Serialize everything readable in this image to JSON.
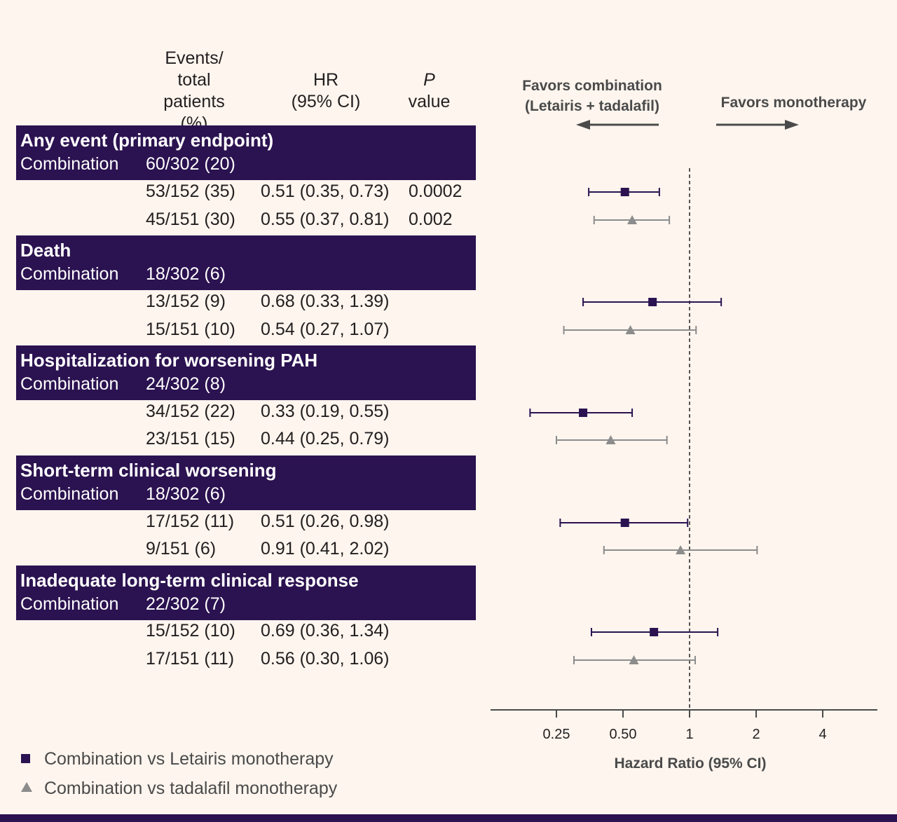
{
  "headers": {
    "events_line1": "Events/",
    "events_line2": "total",
    "events_line3": "patients (%)",
    "hr_line1": "HR",
    "hr_line2": "(95% CI)",
    "p_line1": "P",
    "p_line2": "value"
  },
  "favors": {
    "combination_line1": "Favors combination",
    "combination_line2": "(Letairis + tadalafil)",
    "monotherapy": "Favors monotherapy"
  },
  "groups": [
    {
      "title": "Any event (primary endpoint)",
      "combo_label": "Combination",
      "combo_value": "60/302 (20)",
      "rows": [
        {
          "events": "53/152 (35)",
          "hr": "0.51 (0.35, 0.73)",
          "p": "0.0002"
        },
        {
          "events": "45/151 (30)",
          "hr": "0.55 (0.37, 0.81)",
          "p": "0.002"
        }
      ]
    },
    {
      "title": "Death",
      "combo_label": "Combination",
      "combo_value": "18/302 (6)",
      "rows": [
        {
          "events": "13/152 (9)",
          "hr": "0.68 (0.33, 1.39)",
          "p": ""
        },
        {
          "events": "15/151 (10)",
          "hr": "0.54 (0.27, 1.07)",
          "p": ""
        }
      ]
    },
    {
      "title": "Hospitalization for worsening PAH",
      "combo_label": "Combination",
      "combo_value": "24/302 (8)",
      "rows": [
        {
          "events": "34/152 (22)",
          "hr": "0.33 (0.19, 0.55)",
          "p": ""
        },
        {
          "events": "23/151 (15)",
          "hr": "0.44 (0.25, 0.79)",
          "p": ""
        }
      ]
    },
    {
      "title": "Short-term clinical worsening",
      "combo_label": "Combination",
      "combo_value": "18/302 (6)",
      "rows": [
        {
          "events": "17/152 (11)",
          "hr": "0.51 (0.26, 0.98)",
          "p": ""
        },
        {
          "events": "9/151 (6)",
          "hr": "0.91 (0.41, 2.02)",
          "p": ""
        }
      ]
    },
    {
      "title": "Inadequate long-term clinical response",
      "combo_label": "Combination",
      "combo_value": "22/302 (7)",
      "rows": [
        {
          "events": "15/152 (10)",
          "hr": "0.69 (0.36, 1.34)",
          "p": ""
        },
        {
          "events": "17/151 (11)",
          "hr": "0.56 (0.30, 1.06)",
          "p": ""
        }
      ]
    }
  ],
  "legend": {
    "square": "Combination vs Letairis monotherapy",
    "triangle": "Combination vs tadalafil monotherapy"
  },
  "colors": {
    "primary": "#2b1250",
    "secondary": "#8c8c8c",
    "background": "#fdf5ee"
  },
  "chart_data": {
    "type": "forest",
    "xscale": "log2",
    "xlabel": "Hazard Ratio (95% CI)",
    "xticks": [
      0.25,
      0.5,
      1,
      2,
      4
    ],
    "xtick_labels": [
      "0.25",
      "0.50",
      "1",
      "2",
      "4"
    ],
    "reference_line": 1,
    "series": [
      {
        "name": "Combination vs Letairis monotherapy",
        "marker": "square",
        "points": [
          {
            "group": "Any event (primary endpoint)",
            "hr": 0.51,
            "lo": 0.35,
            "hi": 0.73
          },
          {
            "group": "Death",
            "hr": 0.68,
            "lo": 0.33,
            "hi": 1.39
          },
          {
            "group": "Hospitalization for worsening PAH",
            "hr": 0.33,
            "lo": 0.19,
            "hi": 0.55
          },
          {
            "group": "Short-term clinical worsening",
            "hr": 0.51,
            "lo": 0.26,
            "hi": 0.98
          },
          {
            "group": "Inadequate long-term clinical response",
            "hr": 0.69,
            "lo": 0.36,
            "hi": 1.34
          }
        ]
      },
      {
        "name": "Combination vs tadalafil monotherapy",
        "marker": "triangle",
        "points": [
          {
            "group": "Any event (primary endpoint)",
            "hr": 0.55,
            "lo": 0.37,
            "hi": 0.81
          },
          {
            "group": "Death",
            "hr": 0.54,
            "lo": 0.27,
            "hi": 1.07
          },
          {
            "group": "Hospitalization for worsening PAH",
            "hr": 0.44,
            "lo": 0.25,
            "hi": 0.79
          },
          {
            "group": "Short-term clinical worsening",
            "hr": 0.91,
            "lo": 0.41,
            "hi": 2.02
          },
          {
            "group": "Inadequate long-term clinical response",
            "hr": 0.56,
            "lo": 0.3,
            "hi": 1.06
          }
        ]
      }
    ]
  }
}
